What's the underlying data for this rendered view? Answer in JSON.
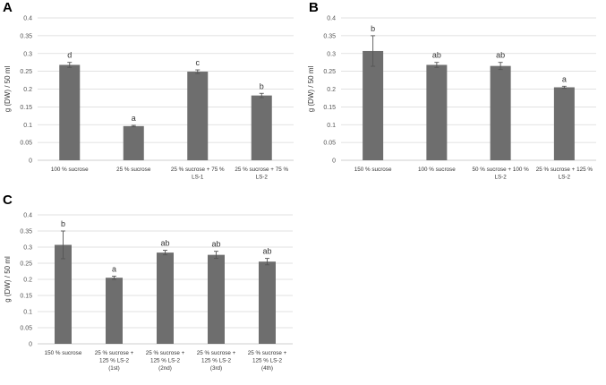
{
  "chart_data": [
    {
      "panel": "A",
      "type": "bar",
      "ylabel": "g (DW) / 50 ml",
      "ylim": [
        0,
        0.4
      ],
      "yticks": [
        "0",
        "0.05",
        "0.1",
        "0.15",
        "0.2",
        "0.25",
        "0.3",
        "0.35",
        "0.4"
      ],
      "grid": true,
      "categories": [
        [
          "100 % sucrose"
        ],
        [
          "25 % sucrose"
        ],
        [
          "25 % sucrose + 75 %",
          "LS-1"
        ],
        [
          "25 % sucrose + 75 %",
          "LS-2"
        ]
      ],
      "values": [
        0.268,
        0.096,
        0.249,
        0.182
      ],
      "errors": [
        0.007,
        0.002,
        0.005,
        0.006
      ],
      "significance": [
        "d",
        "a",
        "c",
        "b"
      ]
    },
    {
      "panel": "B",
      "type": "bar",
      "ylabel": "g (DW) / 50 ml",
      "ylim": [
        0,
        0.4
      ],
      "yticks": [
        "0",
        "0.05",
        "0.1",
        "0.15",
        "0.2",
        "0.25",
        "0.3",
        "0.35",
        "0.4"
      ],
      "grid": true,
      "categories": [
        [
          "150 % sucrose"
        ],
        [
          "100 % sucrose"
        ],
        [
          "50 % sucrose + 100 %",
          "LS-2"
        ],
        [
          "25 % sucrose + 125 %",
          "LS-2"
        ]
      ],
      "values": [
        0.307,
        0.268,
        0.265,
        0.205
      ],
      "errors": [
        0.043,
        0.007,
        0.01,
        0.003
      ],
      "significance": [
        "b",
        "ab",
        "ab",
        "a"
      ]
    },
    {
      "panel": "C",
      "type": "bar",
      "ylabel": "g (DW) / 50 ml",
      "ylim": [
        0,
        0.4
      ],
      "yticks": [
        "0",
        "0.05",
        "0.1",
        "0.15",
        "0.2",
        "0.25",
        "0.3",
        "0.35",
        "0.4"
      ],
      "grid": true,
      "categories": [
        [
          "150 % sucrose"
        ],
        [
          "25 % sucrose +",
          "125 % LS-2",
          "(1st)"
        ],
        [
          "25 % sucrose +",
          "125 % LS-2",
          "(2nd)"
        ],
        [
          "25 % sucrose +",
          "125 % LS-2",
          "(3rd)"
        ],
        [
          "25 % sucrose +",
          "125 % LS-2",
          "(4th)"
        ]
      ],
      "values": [
        0.307,
        0.205,
        0.283,
        0.276,
        0.255
      ],
      "errors": [
        0.043,
        0.005,
        0.007,
        0.011,
        0.01
      ],
      "significance": [
        "b",
        "a",
        "ab",
        "ab",
        "ab"
      ]
    }
  ]
}
